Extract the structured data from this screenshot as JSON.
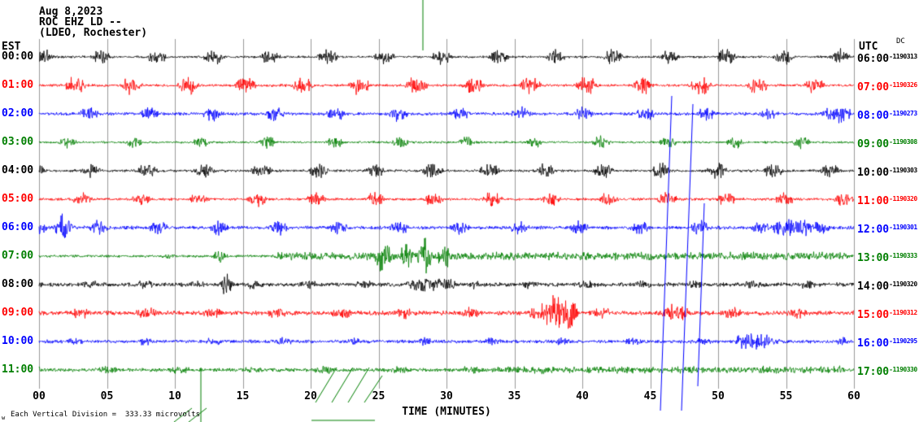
{
  "header": {
    "date": "Aug 8,2023",
    "station_line": "ROC EHZ LD --",
    "location_line": "(LDEO, Rochester)"
  },
  "axis": {
    "left_timezone": "EST",
    "right_timezone": "UTC",
    "right_dc_label": "DC",
    "x_title": "TIME (MINUTES)",
    "x_ticks": [
      "00",
      "05",
      "10",
      "15",
      "20",
      "25",
      "30",
      "35",
      "40",
      "45",
      "50",
      "55",
      "60"
    ]
  },
  "footer": {
    "marker": "w",
    "scale_note": "Each Vertical Division =  333.33 microvolts"
  },
  "colors": {
    "black": "#000000",
    "red": "#ff0000",
    "blue": "#0000ff",
    "green": "#007f00",
    "grid": "#9a9a9a"
  },
  "chart_data": {
    "type": "seismogram",
    "title": "ROC EHZ LD -- (LDEO, Rochester) Aug 8,2023",
    "x_axis": {
      "label": "TIME (MINUTES)",
      "min": 0,
      "max": 60,
      "tick_interval": 5
    },
    "vertical_division_microvolts": 333.33,
    "rows": [
      {
        "est": "00:00",
        "utc": "06:00",
        "dc": "-1190313",
        "color": "#000000",
        "noise": 1.6,
        "burst": {
          "period": 70,
          "width": 30,
          "amp": 11,
          "phase": 10
        },
        "segments": [],
        "spikes": [],
        "clamp": 16
      },
      {
        "est": "01:00",
        "utc": "07:00",
        "dc": "-1190326",
        "color": "#ff0000",
        "noise": 1.8,
        "burst": {
          "period": 70,
          "width": 32,
          "amp": 13,
          "phase": 42
        },
        "segments": [],
        "spikes": [],
        "clamp": 16
      },
      {
        "est": "02:00",
        "utc": "08:00",
        "dc": "-1190273",
        "color": "#0000ff",
        "noise": 2.2,
        "burst": {
          "period": 76,
          "width": 30,
          "amp": 10,
          "phase": 30
        },
        "segments": [
          [
            1012,
            1046,
            12
          ]
        ],
        "spikes": [],
        "clamp": 15
      },
      {
        "est": "03:00",
        "utc": "09:00",
        "dc": "-1190308",
        "color": "#007f00",
        "noise": 1.5,
        "burst": {
          "period": 82,
          "width": 26,
          "amp": 9,
          "phase": 60
        },
        "segments": [],
        "spikes": [],
        "clamp": 14
      },
      {
        "est": "04:00",
        "utc": "10:00",
        "dc": "-1190303",
        "color": "#000000",
        "noise": 1.8,
        "burst": {
          "period": 70,
          "width": 31,
          "amp": 11,
          "phase": 22
        },
        "segments": [],
        "spikes": [],
        "clamp": 16
      },
      {
        "est": "05:00",
        "utc": "11:00",
        "dc": "-1190320",
        "color": "#ff0000",
        "noise": 1.8,
        "burst": {
          "period": 72,
          "width": 30,
          "amp": 10,
          "phase": 34
        },
        "segments": [],
        "spikes": [],
        "clamp": 15
      },
      {
        "est": "06:00",
        "utc": "12:00",
        "dc": "-1190301",
        "color": "#0000ff",
        "noise": 2.4,
        "burst": {
          "period": 74,
          "width": 30,
          "amp": 10,
          "phase": 16
        },
        "segments": [
          [
            948,
            1000,
            12
          ]
        ],
        "spikes": [
          [
            78,
            20,
            8
          ]
        ],
        "clamp": 22
      },
      {
        "est": "07:00",
        "utc": "13:00",
        "dc": "-1190333",
        "color": "#007f00",
        "noise": 1.8,
        "burst": null,
        "segments": [
          [
            198,
            216,
            4
          ],
          [
            335,
            1045,
            5.5
          ]
        ],
        "spikes": [
          [
            270,
            9,
            6
          ],
          [
            470,
            24,
            7
          ],
          [
            500,
            18,
            6
          ],
          [
            522,
            30,
            6
          ],
          [
            546,
            20,
            6
          ]
        ],
        "clamp": 30
      },
      {
        "est": "08:00",
        "utc": "14:00",
        "dc": "-1190320",
        "color": "#000000",
        "noise": 2.8,
        "burst": {
          "period": 68,
          "width": 34,
          "amp": 6.5,
          "phase": 24
        },
        "segments": [
          [
            500,
            560,
            10
          ]
        ],
        "spikes": [
          [
            278,
            16,
            5
          ]
        ],
        "clamp": 18
      },
      {
        "est": "09:00",
        "utc": "15:00",
        "dc": "-1190312",
        "color": "#ff0000",
        "noise": 3.0,
        "burst": {
          "period": 80,
          "width": 36,
          "amp": 8,
          "phase": 46
        },
        "segments": [
          [
            665,
            710,
            24
          ],
          [
            815,
            845,
            13
          ]
        ],
        "spikes": [],
        "clamp": 26
      },
      {
        "est": "10:00",
        "utc": "16:00",
        "dc": "-1190295",
        "color": "#0000ff",
        "noise": 2.4,
        "burst": {
          "period": 86,
          "width": 30,
          "amp": 6,
          "phase": 58
        },
        "segments": [
          [
            905,
            950,
            11
          ]
        ],
        "spikes": [],
        "clamp": 14
      },
      {
        "est": "11:00",
        "utc": "17:00",
        "dc": "-1190330",
        "color": "#007f00",
        "noise": 2.4,
        "burst": {
          "period": 90,
          "width": 40,
          "amp": 6,
          "phase": 28
        },
        "segments": [
          [
            600,
            1040,
            4.5
          ]
        ],
        "spikes": [],
        "clamp": 13
      }
    ],
    "overlay_events": [
      {
        "name": "green-spike-wrap-top",
        "color": "#007f00",
        "points": [
          [
            520,
            0
          ],
          [
            520,
            62
          ]
        ]
      },
      {
        "name": "green-spike-wrap-bottom",
        "color": "#007f00",
        "points": [
          [
            247,
            452
          ],
          [
            247,
            519
          ]
        ]
      },
      {
        "name": "blue-large-event-1",
        "color": "#0000ff",
        "points": [
          [
            812,
            505
          ],
          [
            826,
            118
          ]
        ]
      },
      {
        "name": "blue-large-event-2",
        "color": "#0000ff",
        "points": [
          [
            838,
            505
          ],
          [
            852,
            128
          ]
        ]
      },
      {
        "name": "blue-large-event-3",
        "color": "#0000ff",
        "points": [
          [
            858,
            475
          ],
          [
            866,
            250
          ]
        ]
      },
      {
        "name": "green-clip-slash-1",
        "color": "#007f00",
        "points": [
          [
            388,
            495
          ],
          [
            414,
            452
          ]
        ]
      },
      {
        "name": "green-clip-slash-2",
        "color": "#007f00",
        "points": [
          [
            408,
            495
          ],
          [
            434,
            452
          ]
        ]
      },
      {
        "name": "green-clip-slash-3",
        "color": "#007f00",
        "points": [
          [
            428,
            495
          ],
          [
            454,
            452
          ]
        ]
      },
      {
        "name": "green-clip-slash-4",
        "color": "#007f00",
        "points": [
          [
            448,
            495
          ],
          [
            470,
            462
          ]
        ]
      },
      {
        "name": "green-clip-slash-5",
        "color": "#007f00",
        "points": [
          [
            214,
            519
          ],
          [
            236,
            502
          ]
        ]
      },
      {
        "name": "green-clip-slash-6",
        "color": "#007f00",
        "points": [
          [
            232,
            519
          ],
          [
            254,
            502
          ]
        ]
      },
      {
        "name": "green-underline",
        "color": "#007f00",
        "points": [
          [
            383,
            517
          ],
          [
            461,
            517
          ]
        ]
      }
    ]
  }
}
